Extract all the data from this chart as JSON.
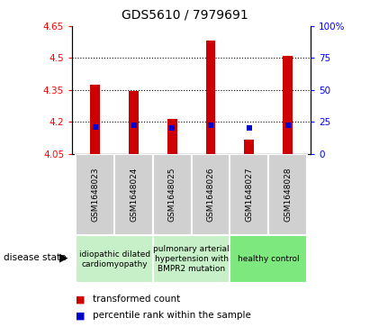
{
  "title": "GDS5610 / 7979691",
  "samples": [
    "GSM1648023",
    "GSM1648024",
    "GSM1648025",
    "GSM1648026",
    "GSM1648027",
    "GSM1648028"
  ],
  "red_values": [
    4.375,
    4.345,
    4.215,
    4.582,
    4.115,
    4.51
  ],
  "blue_values": [
    4.175,
    4.183,
    4.172,
    4.183,
    4.172,
    4.183
  ],
  "baseline": 4.05,
  "ylim_left": [
    4.05,
    4.65
  ],
  "ylim_right": [
    0,
    100
  ],
  "yticks_left": [
    4.05,
    4.2,
    4.35,
    4.5,
    4.65
  ],
  "yticks_right": [
    0,
    25,
    50,
    75,
    100
  ],
  "ytick_labels_left": [
    "4.05",
    "4.2",
    "4.35",
    "4.5",
    "4.65"
  ],
  "ytick_labels_right": [
    "0",
    "25",
    "50",
    "75",
    "100%"
  ],
  "disease_groups": [
    {
      "label": "idiopathic dilated\ncardiomyopathy",
      "samples": [
        0,
        1
      ],
      "color": "#c8f0c8"
    },
    {
      "label": "pulmonary arterial\nhypertension with\nBMPR2 mutation",
      "samples": [
        2,
        3
      ],
      "color": "#c8f0c8"
    },
    {
      "label": "healthy control",
      "samples": [
        4,
        5
      ],
      "color": "#7de87d"
    }
  ],
  "disease_state_label": "disease state",
  "legend_red": "transformed count",
  "legend_blue": "percentile rank within the sample",
  "bar_color": "#cc0000",
  "blue_color": "#0000cc",
  "bar_width": 0.25,
  "tick_fontsize": 7.5,
  "title_fontsize": 10,
  "sample_fontsize": 6.5,
  "disease_fontsize": 6.5,
  "legend_fontsize": 7.5
}
